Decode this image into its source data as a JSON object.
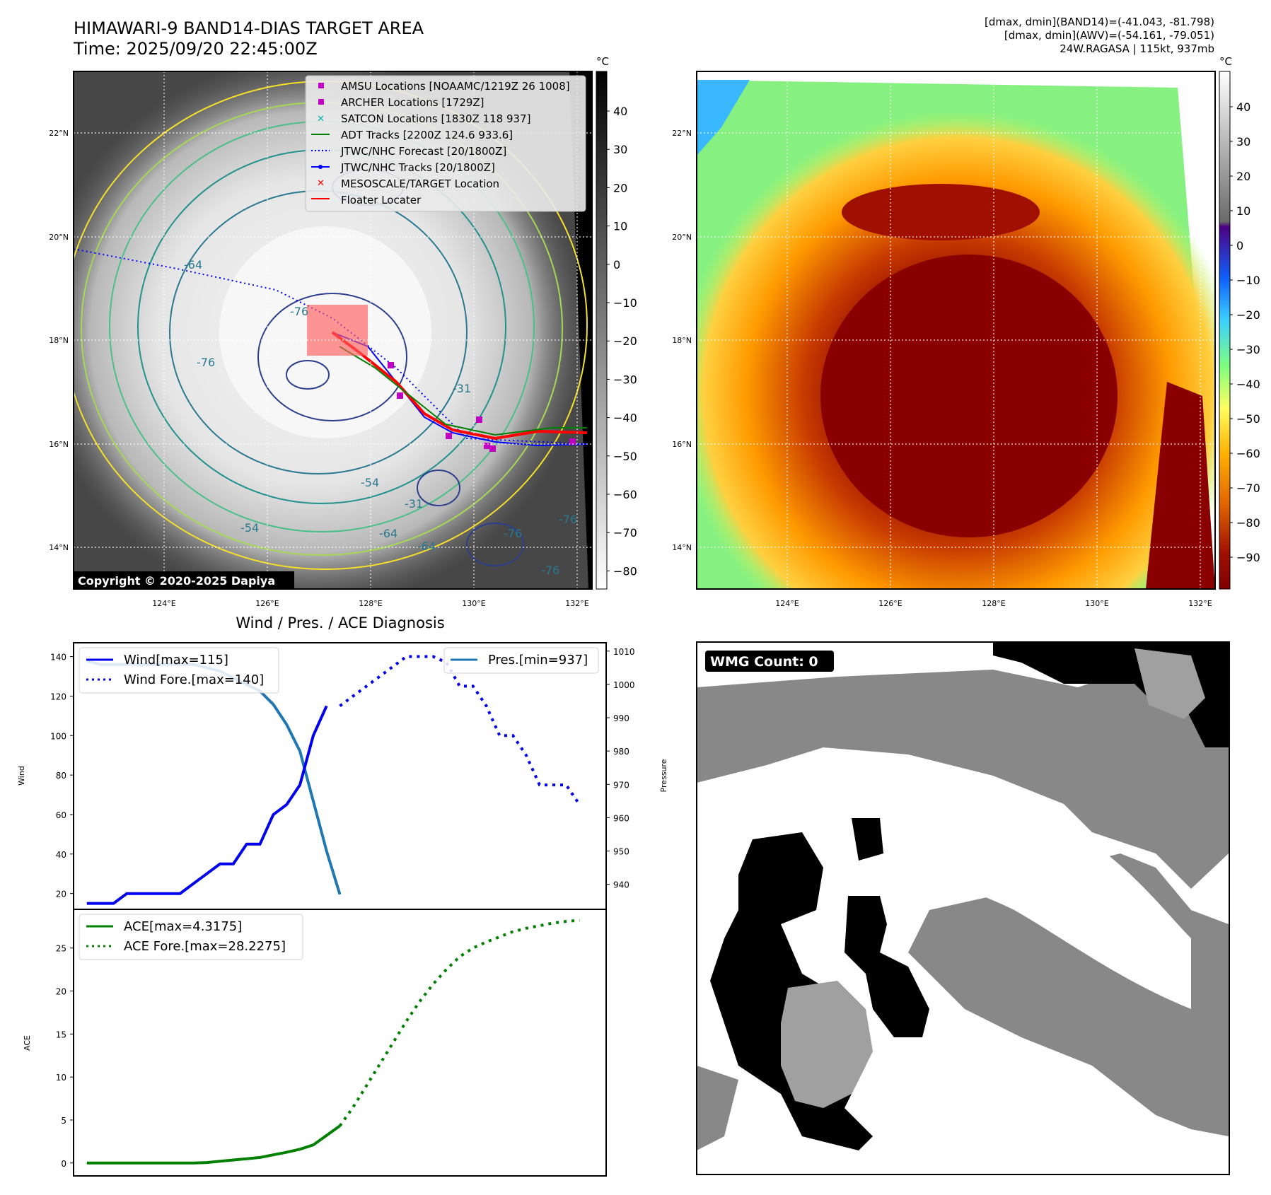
{
  "header": {
    "title_line1": "HIMAWARI-9 BAND14-DIAS TARGET AREA",
    "title_line2": "Time: 2025/09/20 22:45:00Z",
    "right_line1": "[dmax, dmin](BAND14)=(-41.043, -81.798)",
    "right_line2": "[dmax, dmin](AWV)=(-54.161, -79.051)",
    "right_line3": "24W.RAGASA | 115kt, 937mb"
  },
  "map": {
    "lat_ticks": [
      "22°N",
      "20°N",
      "18°N",
      "16°N",
      "14°N"
    ],
    "lon_ticks": [
      "124°E",
      "126°E",
      "128°E",
      "130°E",
      "132°E"
    ],
    "copyright": "Copyright © 2020-2025 Dapiya",
    "legend": [
      {
        "label": "AMSU Locations [NOAAMC/1219Z 26 1008]",
        "color": "#c000c0",
        "marker": "square"
      },
      {
        "label": "ARCHER Locations [1729Z]",
        "color": "#c000c0",
        "marker": "square"
      },
      {
        "label": "SATCON Locations [1830Z 118 937]",
        "color": "#00b0b0",
        "marker": "x"
      },
      {
        "label": "ADT Tracks [2200Z 124.6 933.6]",
        "color": "#008000",
        "marker": "line"
      },
      {
        "label": "JTWC/NHC Forecast [20/1800Z]",
        "color": "#0000ff",
        "marker": "dotted"
      },
      {
        "label": "JTWC/NHC Tracks [20/1800Z]",
        "color": "#0000ff",
        "marker": "line-dot"
      },
      {
        "label": "MESOSCALE/TARGET Location",
        "color": "#ff0000",
        "marker": "x"
      },
      {
        "label": "Floater Locater",
        "color": "#ff0000",
        "marker": "line"
      }
    ],
    "contour_labels": [
      "-76",
      "-76",
      "-64",
      "-64",
      "-54",
      "-54",
      "-31",
      "-31",
      "-76",
      "-76",
      "-76",
      "-64"
    ]
  },
  "colorbar_gray": {
    "unit": "°C",
    "ticks": [
      "40",
      "30",
      "20",
      "10",
      "0",
      "−10",
      "−20",
      "−30",
      "−40",
      "−50",
      "−60",
      "−70",
      "−80"
    ]
  },
  "colorbar_color": {
    "unit": "°C",
    "ticks": [
      "40",
      "30",
      "20",
      "10",
      "0",
      "−10",
      "−20",
      "−30",
      "−40",
      "−50",
      "−60",
      "−70",
      "−80",
      "−90"
    ]
  },
  "wmg": {
    "label": "WMG Count: 0"
  },
  "chart_data": [
    {
      "type": "line",
      "title": "Wind / Pres. / ACE Diagnosis",
      "ylabel": "Wind",
      "y2label": "Pressure",
      "ylim": [
        12,
        147
      ],
      "y2lim": [
        932.5,
        1012.5
      ],
      "yticks": [
        20,
        40,
        60,
        80,
        100,
        120,
        140
      ],
      "y2ticks": [
        940,
        950,
        960,
        970,
        980,
        990,
        1000,
        1010
      ],
      "legend_left": [
        "Wind[max=115]",
        "Wind Fore.[max=140]"
      ],
      "legend_right": [
        "Pres.[min=937]"
      ],
      "series": [
        {
          "name": "Wind[max=115]",
          "color": "#0000ee",
          "style": "solid",
          "axis": "left",
          "x": [
            0,
            1,
            2,
            3,
            4,
            5,
            6,
            7,
            8,
            9,
            10,
            11,
            12,
            13,
            14,
            15,
            16,
            17,
            18,
            19
          ],
          "values": [
            15,
            15,
            15,
            20,
            20,
            20,
            20,
            20,
            25,
            30,
            35,
            35,
            45,
            45,
            60,
            65,
            75,
            100,
            115,
            null
          ]
        },
        {
          "name": "Wind Fore.[max=140]",
          "color": "#0000ee",
          "style": "dotted",
          "axis": "left",
          "x": [
            19,
            20,
            21,
            22,
            23,
            24,
            25,
            26,
            27,
            28,
            29,
            30,
            31,
            32,
            33,
            34,
            35,
            36,
            37
          ],
          "values": [
            115,
            120,
            125,
            130,
            135,
            140,
            140,
            140,
            137,
            125,
            125,
            115,
            100,
            100,
            90,
            75,
            75,
            75,
            65
          ]
        },
        {
          "name": "Pres.[min=937]",
          "color": "#1f77b4",
          "style": "solid",
          "axis": "right",
          "x": [
            0,
            1,
            2,
            3,
            4,
            5,
            6,
            7,
            8,
            9,
            10,
            11,
            12,
            13,
            14,
            15,
            16,
            17,
            18,
            19
          ],
          "values": [
            1007,
            1006,
            1006,
            1006,
            1006,
            1006,
            1006,
            1006,
            1006,
            1005,
            1004,
            1002,
            1000,
            998,
            994,
            988,
            980,
            965,
            950,
            937
          ]
        }
      ]
    },
    {
      "type": "line",
      "ylabel": "ACE",
      "ylim": [
        -1.5,
        29.5
      ],
      "yticks": [
        0,
        5,
        10,
        15,
        20,
        25
      ],
      "legend": [
        "ACE[max=4.3175]",
        "ACE Fore.[max=28.2275]"
      ],
      "series": [
        {
          "name": "ACE[max=4.3175]",
          "color": "#008000",
          "style": "solid",
          "x": [
            0,
            1,
            2,
            3,
            4,
            5,
            6,
            7,
            8,
            9,
            10,
            11,
            12,
            13,
            14,
            15,
            16,
            17,
            18,
            19
          ],
          "values": [
            0,
            0,
            0,
            0,
            0,
            0,
            0,
            0,
            0,
            0.05,
            0.2,
            0.35,
            0.5,
            0.65,
            0.95,
            1.25,
            1.6,
            2.1,
            3.2,
            4.3175
          ]
        },
        {
          "name": "ACE Fore.[max=28.2275]",
          "color": "#008000",
          "style": "dotted",
          "x": [
            19,
            20,
            21,
            22,
            23,
            24,
            25,
            26,
            27,
            28,
            29,
            30,
            31,
            32,
            33,
            34,
            35,
            36,
            37
          ],
          "values": [
            4.3175,
            6.5,
            9.0,
            11.5,
            14.0,
            16.5,
            18.8,
            20.8,
            22.5,
            24.0,
            25.0,
            25.7,
            26.3,
            26.9,
            27.3,
            27.6,
            27.9,
            28.1,
            28.2275
          ]
        }
      ]
    }
  ]
}
